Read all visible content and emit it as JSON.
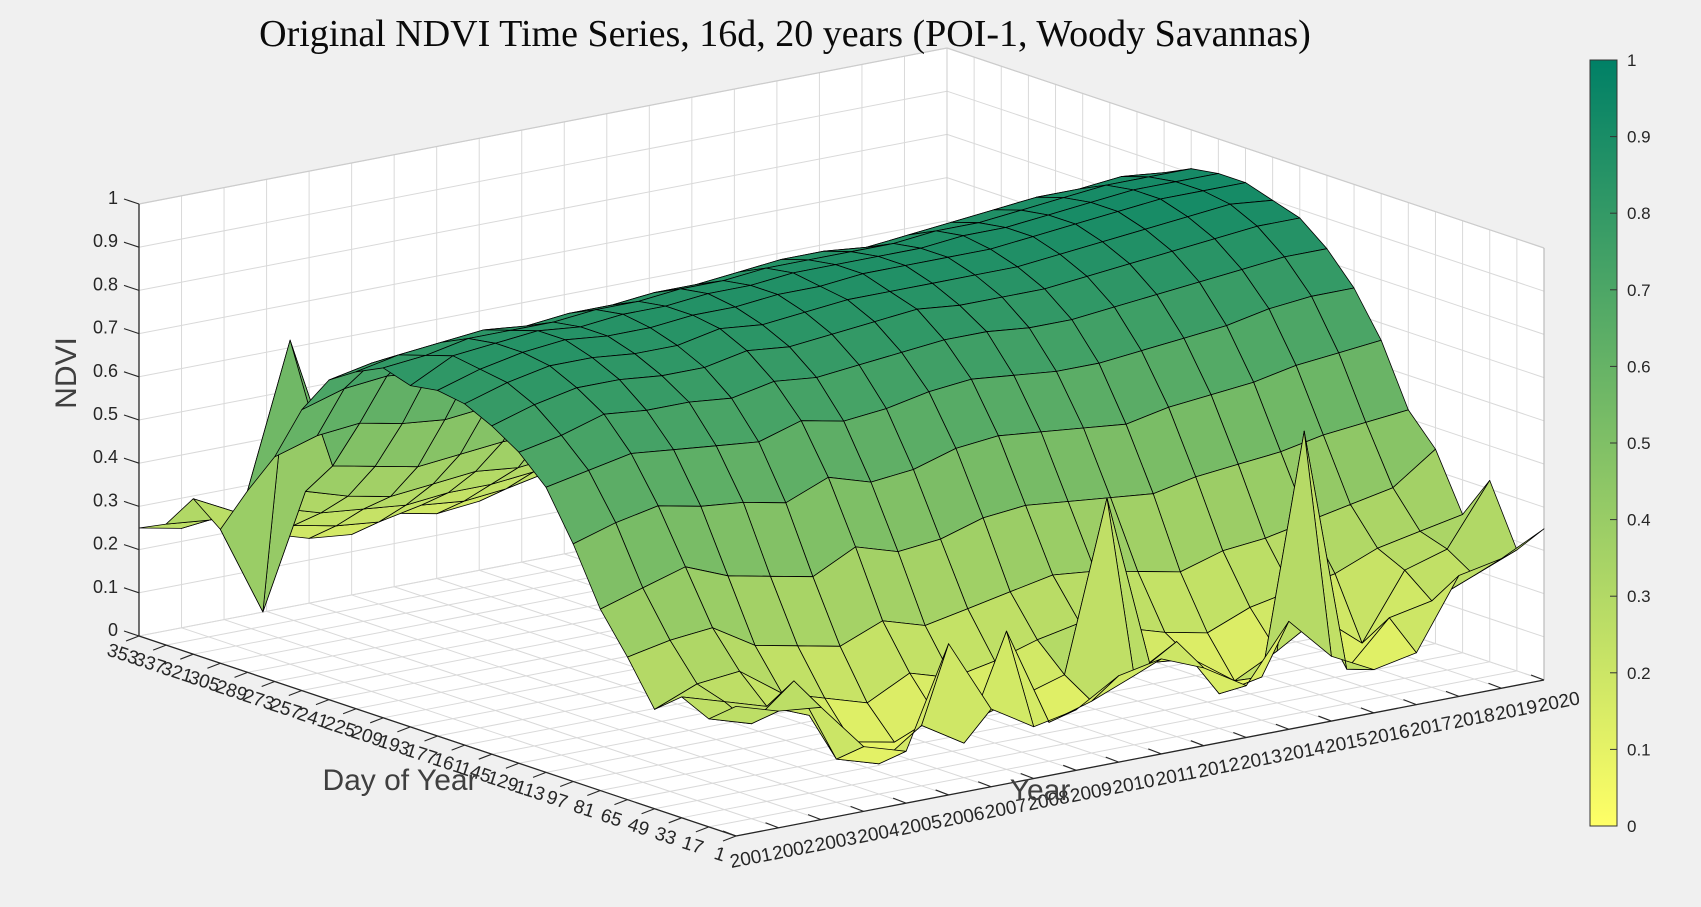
{
  "figure": {
    "background": "#f0f0f0",
    "panel_color": "#ffffff",
    "grid_color": "#d9d9d9",
    "axis_line_color": "#262626",
    "tick_label_color": "#262626",
    "axis_title_color": "#3f3f3f",
    "mesh_edge_color": "#000000"
  },
  "chart_data": {
    "type": "surface",
    "title": "Original NDVI Time Series, 16d, 20 years (POI-1, Woody Savannas)",
    "xlabel": "Year",
    "ylabel": "Day of Year",
    "zlabel": "NDVI",
    "view": {
      "azimuth": -37.5,
      "elevation": 30
    },
    "zlim": [
      0,
      1
    ],
    "grid": true,
    "x_years": [
      2001,
      2002,
      2003,
      2004,
      2005,
      2006,
      2007,
      2008,
      2009,
      2010,
      2011,
      2012,
      2013,
      2014,
      2015,
      2016,
      2017,
      2018,
      2019,
      2020
    ],
    "y_days": [
      1,
      17,
      33,
      49,
      65,
      81,
      97,
      113,
      129,
      145,
      161,
      177,
      193,
      209,
      225,
      241,
      257,
      273,
      289,
      305,
      321,
      337,
      353
    ],
    "z_ticks": [
      "0",
      "0.1",
      "0.2",
      "0.3",
      "0.4",
      "0.5",
      "0.6",
      "0.7",
      "0.8",
      "0.9",
      "1"
    ],
    "colorbar": {
      "ticks": [
        "0",
        "0.1",
        "0.2",
        "0.3",
        "0.4",
        "0.5",
        "0.6",
        "0.7",
        "0.8",
        "0.9",
        "1"
      ],
      "low_color": "#ffff66",
      "high_color": "#008066",
      "colormap": "summer-reversed"
    },
    "ndvi": [
      [
        0.3,
        0.25,
        0.28,
        0.23,
        0.33,
        0.42,
        0.55,
        0.66,
        0.72,
        0.76,
        0.79,
        0.8,
        0.79,
        0.81,
        0.78,
        0.74,
        0.65,
        0.52,
        0.42,
        0.31,
        0.36,
        0.28,
        0.25
      ],
      [
        0.27,
        0.22,
        0.25,
        0.27,
        0.35,
        0.45,
        0.58,
        0.68,
        0.74,
        0.79,
        0.82,
        0.83,
        0.84,
        0.82,
        0.8,
        0.76,
        0.68,
        0.55,
        0.75,
        0.1,
        0.31,
        0.27,
        0.23
      ],
      [
        0.26,
        0.3,
        0.22,
        0.28,
        0.36,
        0.48,
        0.6,
        0.7,
        0.77,
        0.81,
        0.84,
        0.85,
        0.85,
        0.84,
        0.81,
        0.77,
        0.69,
        0.56,
        0.44,
        0.36,
        0.3,
        0.27,
        0.25
      ],
      [
        0.15,
        0.1,
        0.18,
        0.21,
        0.3,
        0.44,
        0.58,
        0.69,
        0.76,
        0.81,
        0.84,
        0.86,
        0.86,
        0.84,
        0.82,
        0.77,
        0.68,
        0.54,
        0.42,
        0.33,
        0.27,
        0.22,
        0.18
      ],
      [
        0.12,
        0.07,
        0.1,
        0.18,
        0.28,
        0.42,
        0.57,
        0.68,
        0.76,
        0.8,
        0.83,
        0.85,
        0.85,
        0.84,
        0.81,
        0.76,
        0.67,
        0.53,
        0.4,
        0.31,
        0.26,
        0.2,
        0.15
      ],
      [
        0.35,
        0.14,
        0.08,
        0.15,
        0.26,
        0.4,
        0.55,
        0.67,
        0.75,
        0.8,
        0.83,
        0.85,
        0.86,
        0.85,
        0.82,
        0.77,
        0.68,
        0.54,
        0.41,
        0.32,
        0.25,
        0.19,
        0.14
      ],
      [
        0.18,
        0.08,
        0.12,
        0.2,
        0.3,
        0.45,
        0.59,
        0.7,
        0.77,
        0.82,
        0.85,
        0.86,
        0.86,
        0.85,
        0.82,
        0.78,
        0.69,
        0.55,
        0.42,
        0.33,
        0.26,
        0.21,
        0.17
      ],
      [
        0.12,
        0.32,
        0.1,
        0.17,
        0.27,
        0.42,
        0.56,
        0.68,
        0.76,
        0.81,
        0.84,
        0.86,
        0.87,
        0.86,
        0.83,
        0.78,
        0.69,
        0.55,
        0.42,
        0.32,
        0.26,
        0.2,
        0.15
      ],
      [
        0.14,
        0.09,
        0.13,
        0.19,
        0.29,
        0.43,
        0.57,
        0.69,
        0.77,
        0.82,
        0.85,
        0.87,
        0.87,
        0.86,
        0.83,
        0.79,
        0.7,
        0.56,
        0.43,
        0.33,
        0.27,
        0.21,
        0.16
      ],
      [
        0.2,
        0.12,
        0.16,
        0.22,
        0.31,
        0.46,
        0.6,
        0.71,
        0.78,
        0.83,
        0.86,
        0.87,
        0.88,
        0.87,
        0.84,
        0.79,
        0.7,
        0.56,
        0.43,
        0.34,
        0.28,
        0.23,
        0.19
      ],
      [
        0.22,
        0.16,
        0.55,
        0.24,
        0.33,
        0.47,
        0.61,
        0.72,
        0.79,
        0.84,
        0.86,
        0.88,
        0.88,
        0.87,
        0.85,
        0.8,
        0.71,
        0.57,
        0.44,
        0.35,
        0.29,
        0.24,
        0.2
      ],
      [
        0.18,
        0.22,
        0.15,
        0.21,
        0.32,
        0.46,
        0.6,
        0.71,
        0.79,
        0.83,
        0.86,
        0.88,
        0.88,
        0.87,
        0.85,
        0.8,
        0.71,
        0.57,
        0.44,
        0.34,
        0.28,
        0.23,
        0.19
      ],
      [
        0.12,
        0.08,
        0.14,
        0.18,
        0.3,
        0.45,
        0.59,
        0.7,
        0.78,
        0.83,
        0.86,
        0.88,
        0.88,
        0.87,
        0.84,
        0.8,
        0.71,
        0.57,
        0.43,
        0.34,
        0.27,
        0.21,
        0.15
      ],
      [
        0.25,
        0.1,
        0.07,
        0.16,
        0.28,
        0.44,
        0.58,
        0.7,
        0.78,
        0.83,
        0.86,
        0.88,
        0.89,
        0.88,
        0.85,
        0.8,
        0.71,
        0.57,
        0.44,
        0.34,
        0.28,
        0.22,
        0.17
      ],
      [
        0.15,
        0.65,
        0.12,
        0.2,
        0.31,
        0.46,
        0.6,
        0.71,
        0.79,
        0.84,
        0.87,
        0.89,
        0.89,
        0.88,
        0.86,
        0.81,
        0.72,
        0.58,
        0.45,
        0.35,
        0.28,
        0.23,
        0.18
      ],
      [
        0.1,
        0.08,
        0.18,
        0.22,
        0.32,
        0.47,
        0.61,
        0.72,
        0.8,
        0.85,
        0.88,
        0.9,
        0.9,
        0.89,
        0.87,
        0.82,
        0.73,
        0.59,
        0.45,
        0.35,
        0.29,
        0.23,
        0.16
      ],
      [
        0.12,
        0.18,
        0.1,
        0.24,
        0.34,
        0.48,
        0.62,
        0.73,
        0.81,
        0.86,
        0.89,
        0.91,
        0.91,
        0.9,
        0.88,
        0.83,
        0.74,
        0.6,
        0.46,
        0.36,
        0.3,
        0.24,
        0.18
      ],
      [
        0.28,
        0.2,
        0.25,
        0.28,
        0.36,
        0.5,
        0.64,
        0.75,
        0.82,
        0.87,
        0.9,
        0.92,
        0.92,
        0.91,
        0.88,
        0.84,
        0.75,
        0.61,
        0.47,
        0.37,
        0.31,
        0.26,
        0.22
      ],
      [
        0.3,
        0.24,
        0.28,
        0.3,
        0.38,
        0.51,
        0.65,
        0.76,
        0.83,
        0.88,
        0.91,
        0.92,
        0.92,
        0.91,
        0.89,
        0.84,
        0.75,
        0.61,
        0.48,
        0.38,
        0.32,
        0.27,
        0.24
      ],
      [
        0.35,
        0.28,
        0.42,
        0.32,
        0.45,
        0.52,
        0.66,
        0.76,
        0.83,
        0.88,
        0.9,
        0.92,
        0.92,
        0.91,
        0.88,
        0.84,
        0.75,
        0.61,
        0.48,
        0.45,
        0.35,
        0.48,
        0.44
      ]
    ]
  }
}
